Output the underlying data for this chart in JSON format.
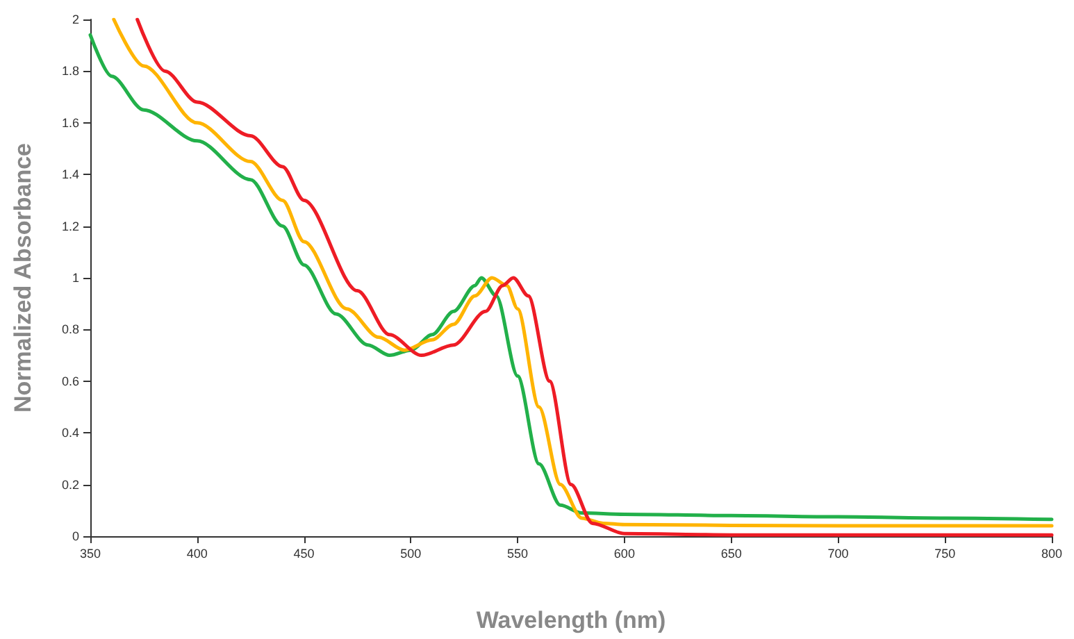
{
  "chart_data": {
    "type": "line",
    "xlabel": "Wavelength (nm)",
    "ylabel": "Normalized Absorbance",
    "xlim": [
      350,
      800
    ],
    "xticks": [
      350,
      400,
      450,
      500,
      550,
      600,
      650,
      700,
      750,
      800
    ],
    "ylim": [
      0,
      2
    ],
    "yticks": [
      0,
      0.2,
      0.4,
      0.6,
      0.8,
      1,
      1.2,
      1.4,
      1.6,
      1.8,
      2
    ],
    "marker": "none",
    "line_style": "solid",
    "series": [
      {
        "color": "#22b04a",
        "x": [
          350,
          360,
          375,
          400,
          425,
          440,
          450,
          465,
          480,
          490,
          500,
          510,
          520,
          530,
          533,
          540,
          550,
          560,
          570,
          580,
          600,
          650,
          700,
          750,
          800
        ],
        "values": [
          1.94,
          1.78,
          1.65,
          1.53,
          1.38,
          1.2,
          1.05,
          0.86,
          0.74,
          0.7,
          0.72,
          0.78,
          0.87,
          0.97,
          1.0,
          0.93,
          0.62,
          0.28,
          0.12,
          0.09,
          0.085,
          0.08,
          0.075,
          0.07,
          0.065
        ]
      },
      {
        "color": "#ffb400",
        "x": [
          361,
          375,
          400,
          425,
          440,
          450,
          470,
          485,
          497,
          510,
          520,
          530,
          538,
          545,
          550,
          560,
          570,
          580,
          590,
          600,
          650,
          700,
          750,
          800
        ],
        "values": [
          2.0,
          1.82,
          1.6,
          1.45,
          1.3,
          1.14,
          0.88,
          0.77,
          0.72,
          0.76,
          0.82,
          0.93,
          1.0,
          0.97,
          0.88,
          0.5,
          0.2,
          0.07,
          0.05,
          0.045,
          0.042,
          0.04,
          0.04,
          0.04
        ]
      },
      {
        "color": "#ee1c25",
        "x": [
          372,
          385,
          400,
          425,
          440,
          450,
          475,
          490,
          505,
          520,
          535,
          543,
          548,
          555,
          565,
          575,
          585,
          600,
          650,
          700,
          750,
          800
        ],
        "values": [
          2.0,
          1.8,
          1.68,
          1.55,
          1.43,
          1.3,
          0.95,
          0.78,
          0.7,
          0.74,
          0.87,
          0.97,
          1.0,
          0.93,
          0.6,
          0.2,
          0.05,
          0.01,
          0.005,
          0.005,
          0.005,
          0.005
        ]
      }
    ]
  }
}
